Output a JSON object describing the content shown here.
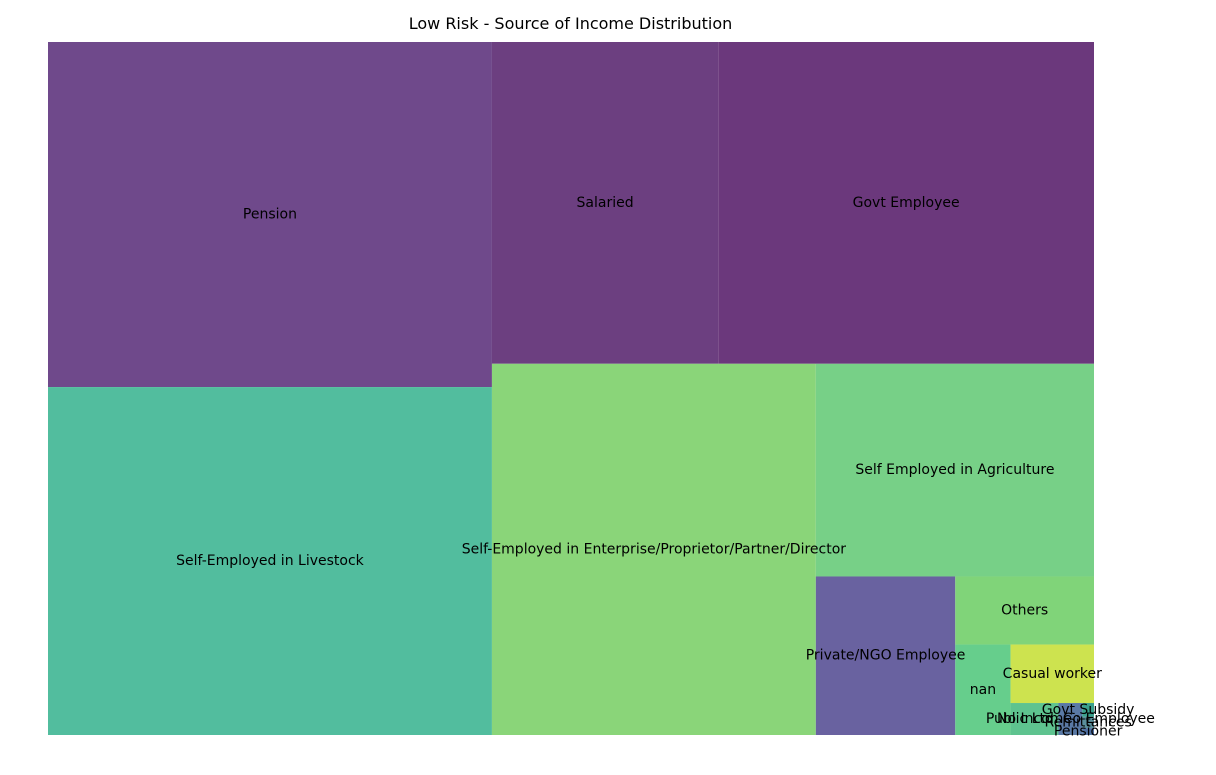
{
  "chart_data": {
    "type": "treemap",
    "title": "Low Risk - Source of Income Distribution",
    "items": [
      {
        "label": "Pension",
        "value": 15101,
        "color": "#6f498b"
      },
      {
        "label": "Self-Employed in Livestock",
        "value": 15228,
        "color": "#52bd9e"
      },
      {
        "label": "Salaried",
        "value": 7180,
        "color": "#6c3f80"
      },
      {
        "label": "Govt Employee",
        "value": 11919,
        "color": "#6b387c"
      },
      {
        "label": "Self-Employed in Enterprise/Proprietor/Partner/Director",
        "value": 11854,
        "color": "#8ad579"
      },
      {
        "label": "Self Employed in Agriculture",
        "value": 5832,
        "color": "#77d087"
      },
      {
        "label": "Private/NGO Employee",
        "value": 2179,
        "color": "#6962a0"
      },
      {
        "label": "Others",
        "value": 931,
        "color": "#80d479"
      },
      {
        "label": "nan",
        "value": 493,
        "color": "#66ce8c"
      },
      {
        "label": "Casual worker",
        "value": 481,
        "color": "#cde34f"
      },
      {
        "label": "No Income",
        "value": 151,
        "color": "#5ec38f"
      },
      {
        "label": "Public Ltd. Co Employee",
        "value": 75,
        "color": "#5a79a5"
      },
      {
        "label": "Govt Subsidy",
        "value": 16,
        "color": "#3a9f8b"
      },
      {
        "label": "Remittances",
        "value": 13,
        "color": "#5a8f9c"
      },
      {
        "label": "Pensioner",
        "value": 8,
        "color": "#4f6fa0"
      }
    ]
  }
}
